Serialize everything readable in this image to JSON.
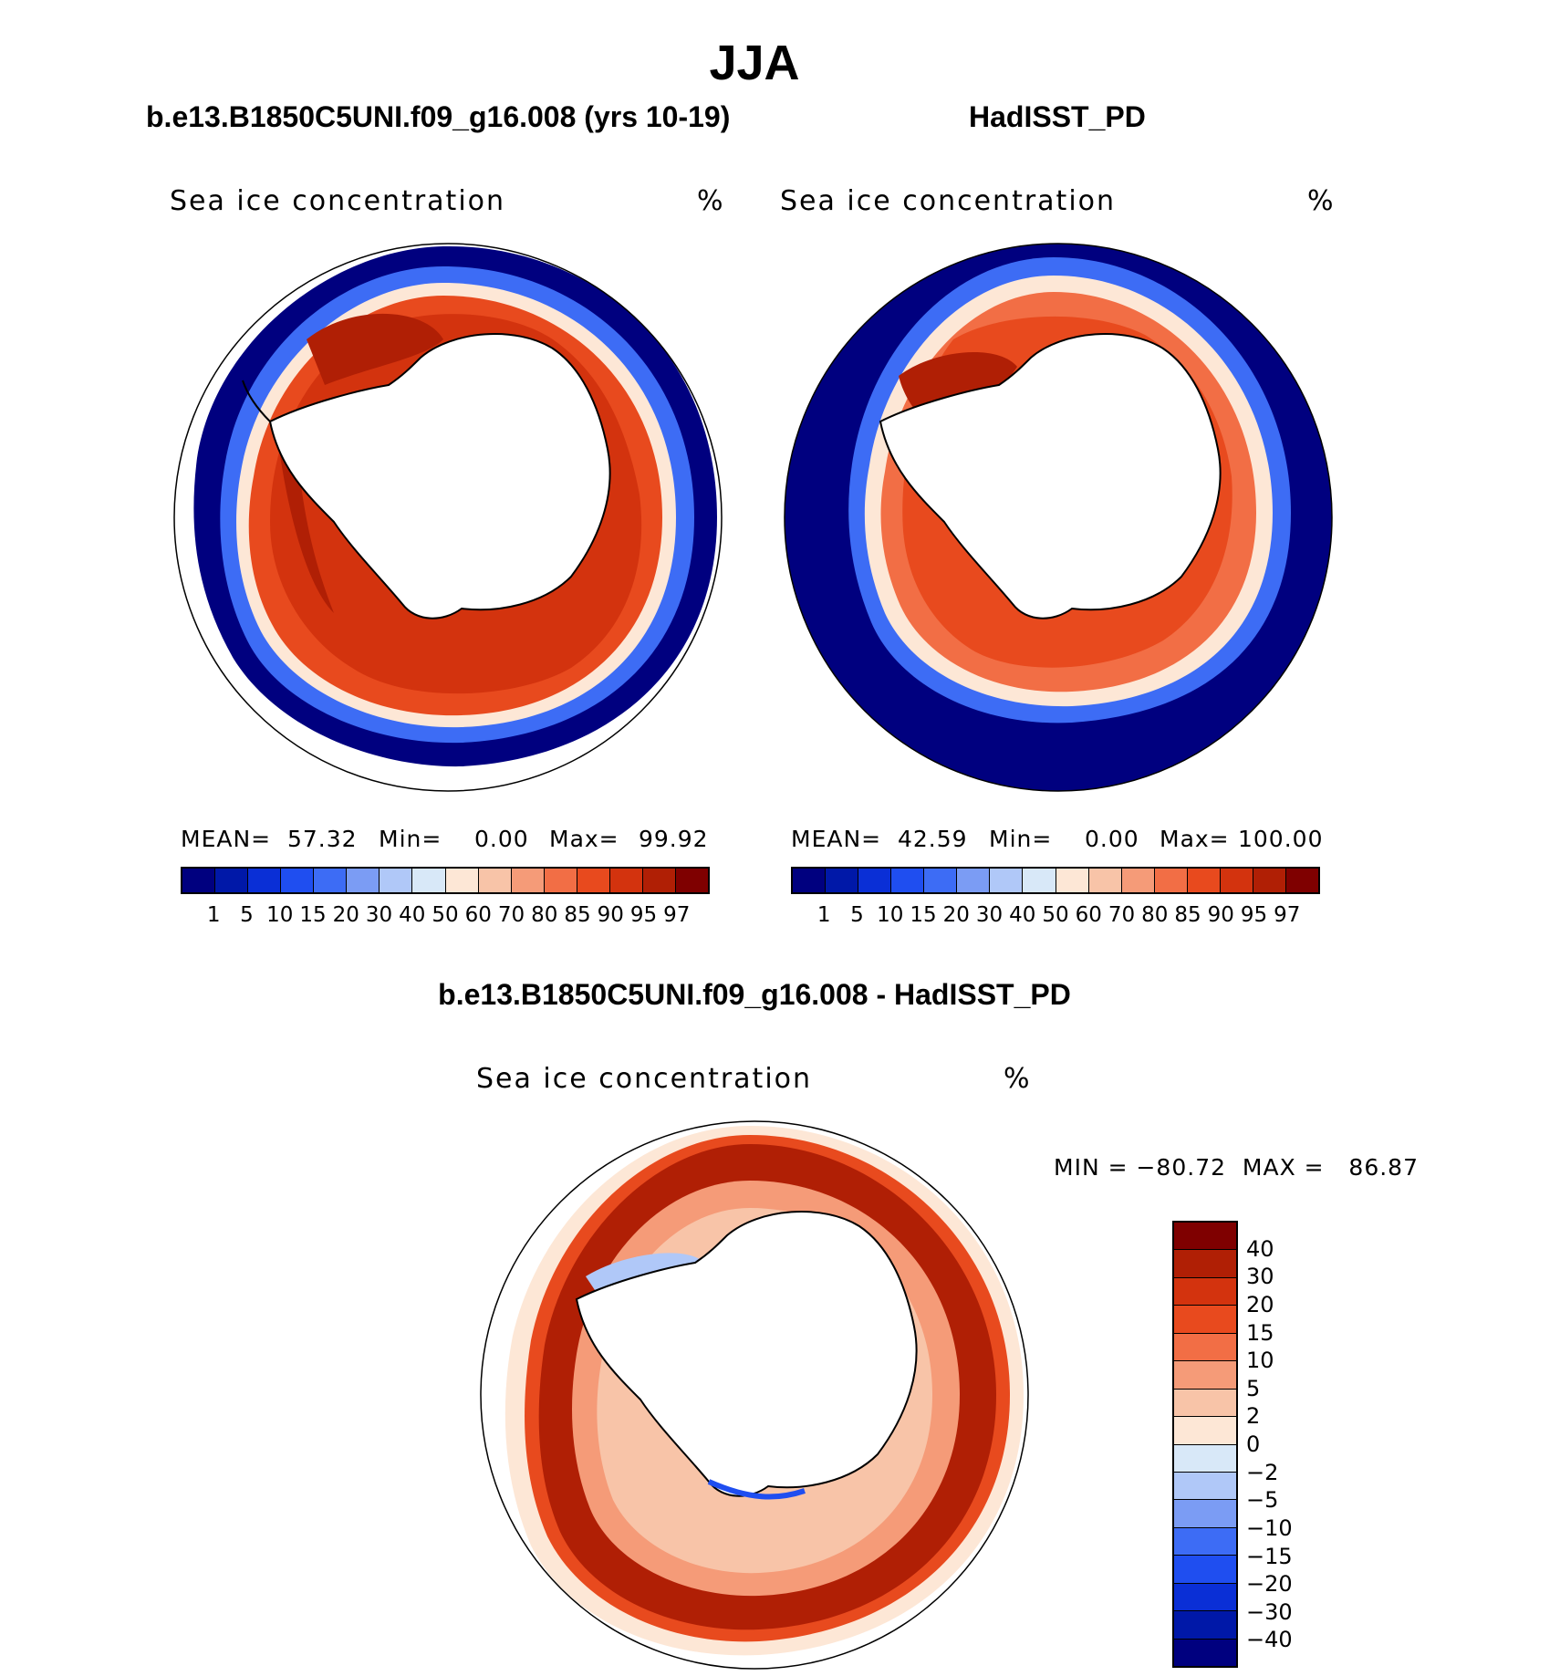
{
  "main_title": "JJA",
  "left_panel": {
    "title": "b.e13.B1850C5UNI.f09_g16.008 (yrs 10-19)",
    "label": "Sea ice concentration",
    "units": "%",
    "mean_label": "MEAN=",
    "mean_value": "57.32",
    "min_label": "Min=",
    "min_value": "0.00",
    "max_label": "Max=",
    "max_value": "99.92"
  },
  "right_panel": {
    "title": "HadISST_PD",
    "label": "Sea ice concentration",
    "units": "%",
    "mean_label": "MEAN=",
    "mean_value": "42.59",
    "min_label": "Min=",
    "min_value": "0.00",
    "max_label": "Max=",
    "max_value": "100.00"
  },
  "diff_panel": {
    "title": "b.e13.B1850C5UNI.f09_g16.008 - HadISST_PD",
    "label": "Sea ice concentration",
    "units": "%",
    "minmax_text": "MIN = −80.72  MAX =   86.87"
  },
  "abs_colorbar": {
    "ticks": [
      "1",
      "5",
      "10",
      "15",
      "20",
      "30",
      "40",
      "50",
      "60",
      "70",
      "80",
      "85",
      "90",
      "95",
      "97"
    ],
    "colors": [
      "#00007f",
      "#0018a8",
      "#0a2fd6",
      "#1f4ef0",
      "#3d6cf5",
      "#7b9cf4",
      "#b0c8f8",
      "#d8e8f8",
      "#fde7d6",
      "#f8c4a8",
      "#f59b78",
      "#f26e45",
      "#e84a1e",
      "#d3330e",
      "#b01f05",
      "#7f0000"
    ]
  },
  "diff_colorbar": {
    "ticks": [
      "40",
      "30",
      "20",
      "15",
      "10",
      "5",
      "2",
      "0",
      "−2",
      "−5",
      "−10",
      "−15",
      "−20",
      "−30",
      "−40"
    ],
    "colors": [
      "#7f0000",
      "#b01f05",
      "#d3330e",
      "#e84a1e",
      "#f26e45",
      "#f59b78",
      "#f8c4a8",
      "#fde7d6",
      "#d8e8f8",
      "#b0c8f8",
      "#7b9cf4",
      "#3d6cf5",
      "#1f4ef0",
      "#0a2fd6",
      "#0018a8",
      "#00007f"
    ]
  }
}
